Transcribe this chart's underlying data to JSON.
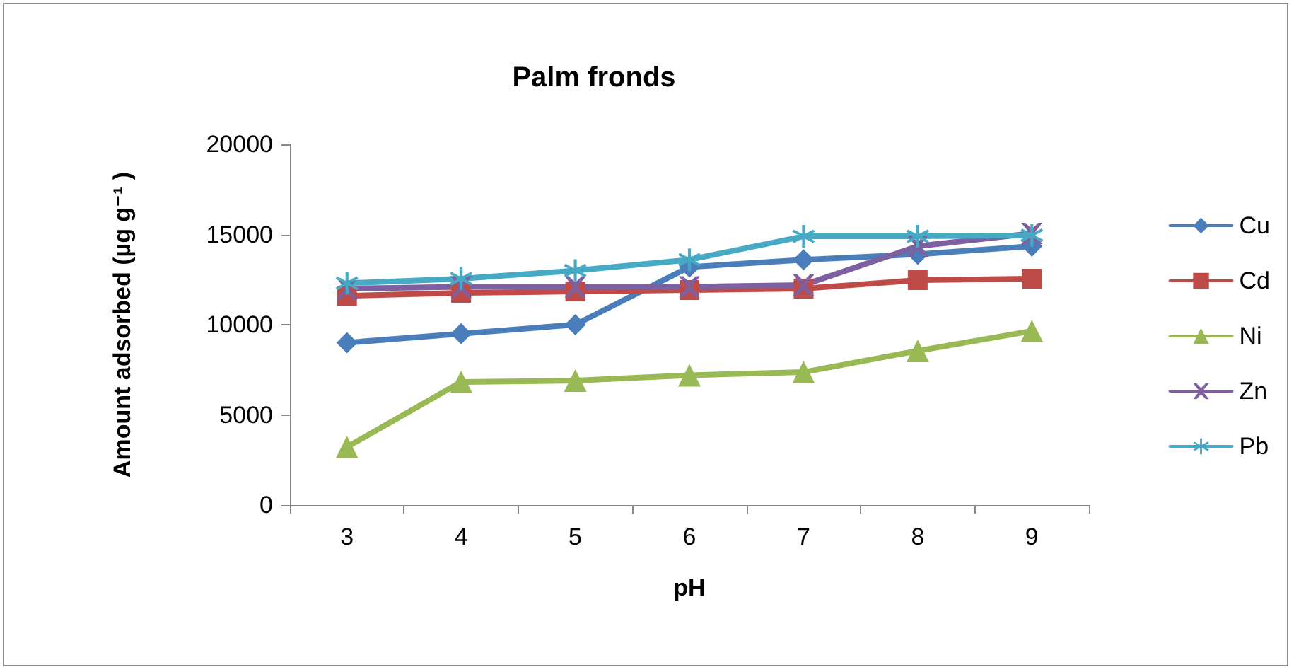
{
  "chart_data": {
    "type": "line",
    "title": "Palm fronds",
    "xlabel": "pH",
    "ylabel": "Amount adsorbed (µg g⁻¹ )",
    "categories": [
      "3",
      "4",
      "5",
      "6",
      "7",
      "8",
      "9"
    ],
    "series": [
      {
        "name": "Cu",
        "color": "#4a7ebb",
        "marker": "diamond",
        "values": [
          9000,
          9500,
          10000,
          13200,
          13600,
          13900,
          14350
        ]
      },
      {
        "name": "Cd",
        "color": "#be4b48",
        "marker": "square",
        "values": [
          11600,
          11760,
          11840,
          11920,
          12000,
          12470,
          12550
        ]
      },
      {
        "name": "Ni",
        "color": "#98b954",
        "marker": "triangle",
        "values": [
          3220,
          6820,
          6900,
          7200,
          7370,
          8550,
          9650
        ]
      },
      {
        "name": "Zn",
        "color": "#7d60a0",
        "marker": "cross",
        "values": [
          12000,
          12100,
          12100,
          12100,
          12200,
          14350,
          15060
        ]
      },
      {
        "name": "Pb",
        "color": "#46aac5",
        "marker": "star",
        "values": [
          12300,
          12550,
          13000,
          13600,
          14900,
          14900,
          14950
        ]
      }
    ],
    "ylim": [
      0,
      20000
    ],
    "yticks": [
      0,
      5000,
      10000,
      15000,
      20000
    ],
    "grid": false,
    "legend": "right"
  }
}
